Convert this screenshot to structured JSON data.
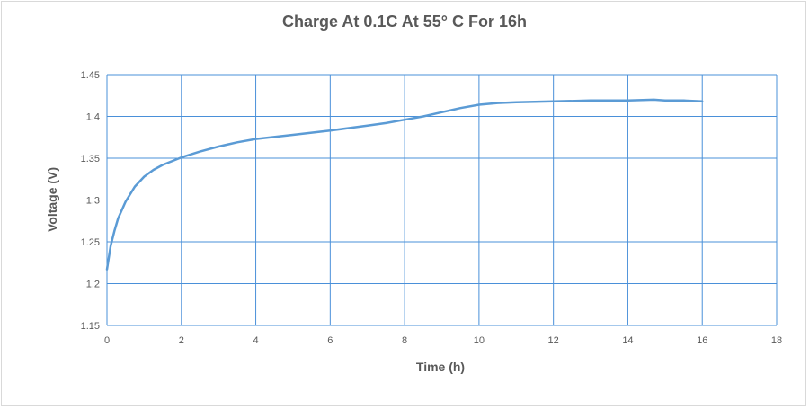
{
  "chart_data": {
    "type": "line",
    "title": "Charge At 0.1C At 55° C For 16h",
    "xlabel": "Time (h)",
    "ylabel": "Voltage (V)",
    "xlim": [
      0,
      18
    ],
    "ylim": [
      1.15,
      1.45
    ],
    "x_ticks": [
      0,
      2,
      4,
      6,
      8,
      10,
      12,
      14,
      16,
      18
    ],
    "y_ticks": [
      1.15,
      1.2,
      1.25,
      1.3,
      1.35,
      1.4,
      1.45
    ],
    "grid": true,
    "legend": "none",
    "line_color": "#5b9bd5",
    "grid_color": "#4a90d9",
    "series": [
      {
        "x": [
          0,
          0.1,
          0.2,
          0.3,
          0.5,
          0.75,
          1.0,
          1.25,
          1.5,
          2.0,
          2.5,
          3.0,
          3.5,
          4.0,
          5.0,
          6.0,
          6.5,
          7.0,
          7.5,
          8.0,
          8.5,
          9.0,
          9.5,
          10.0,
          10.5,
          11.0,
          12.0,
          13.0,
          14.0,
          14.7,
          15.0,
          15.5,
          16.0
        ],
        "y": [
          1.217,
          1.245,
          1.263,
          1.278,
          1.298,
          1.316,
          1.328,
          1.336,
          1.342,
          1.351,
          1.358,
          1.364,
          1.369,
          1.373,
          1.378,
          1.383,
          1.386,
          1.389,
          1.392,
          1.396,
          1.4,
          1.405,
          1.41,
          1.414,
          1.416,
          1.417,
          1.418,
          1.419,
          1.419,
          1.42,
          1.419,
          1.419,
          1.418
        ]
      }
    ]
  }
}
